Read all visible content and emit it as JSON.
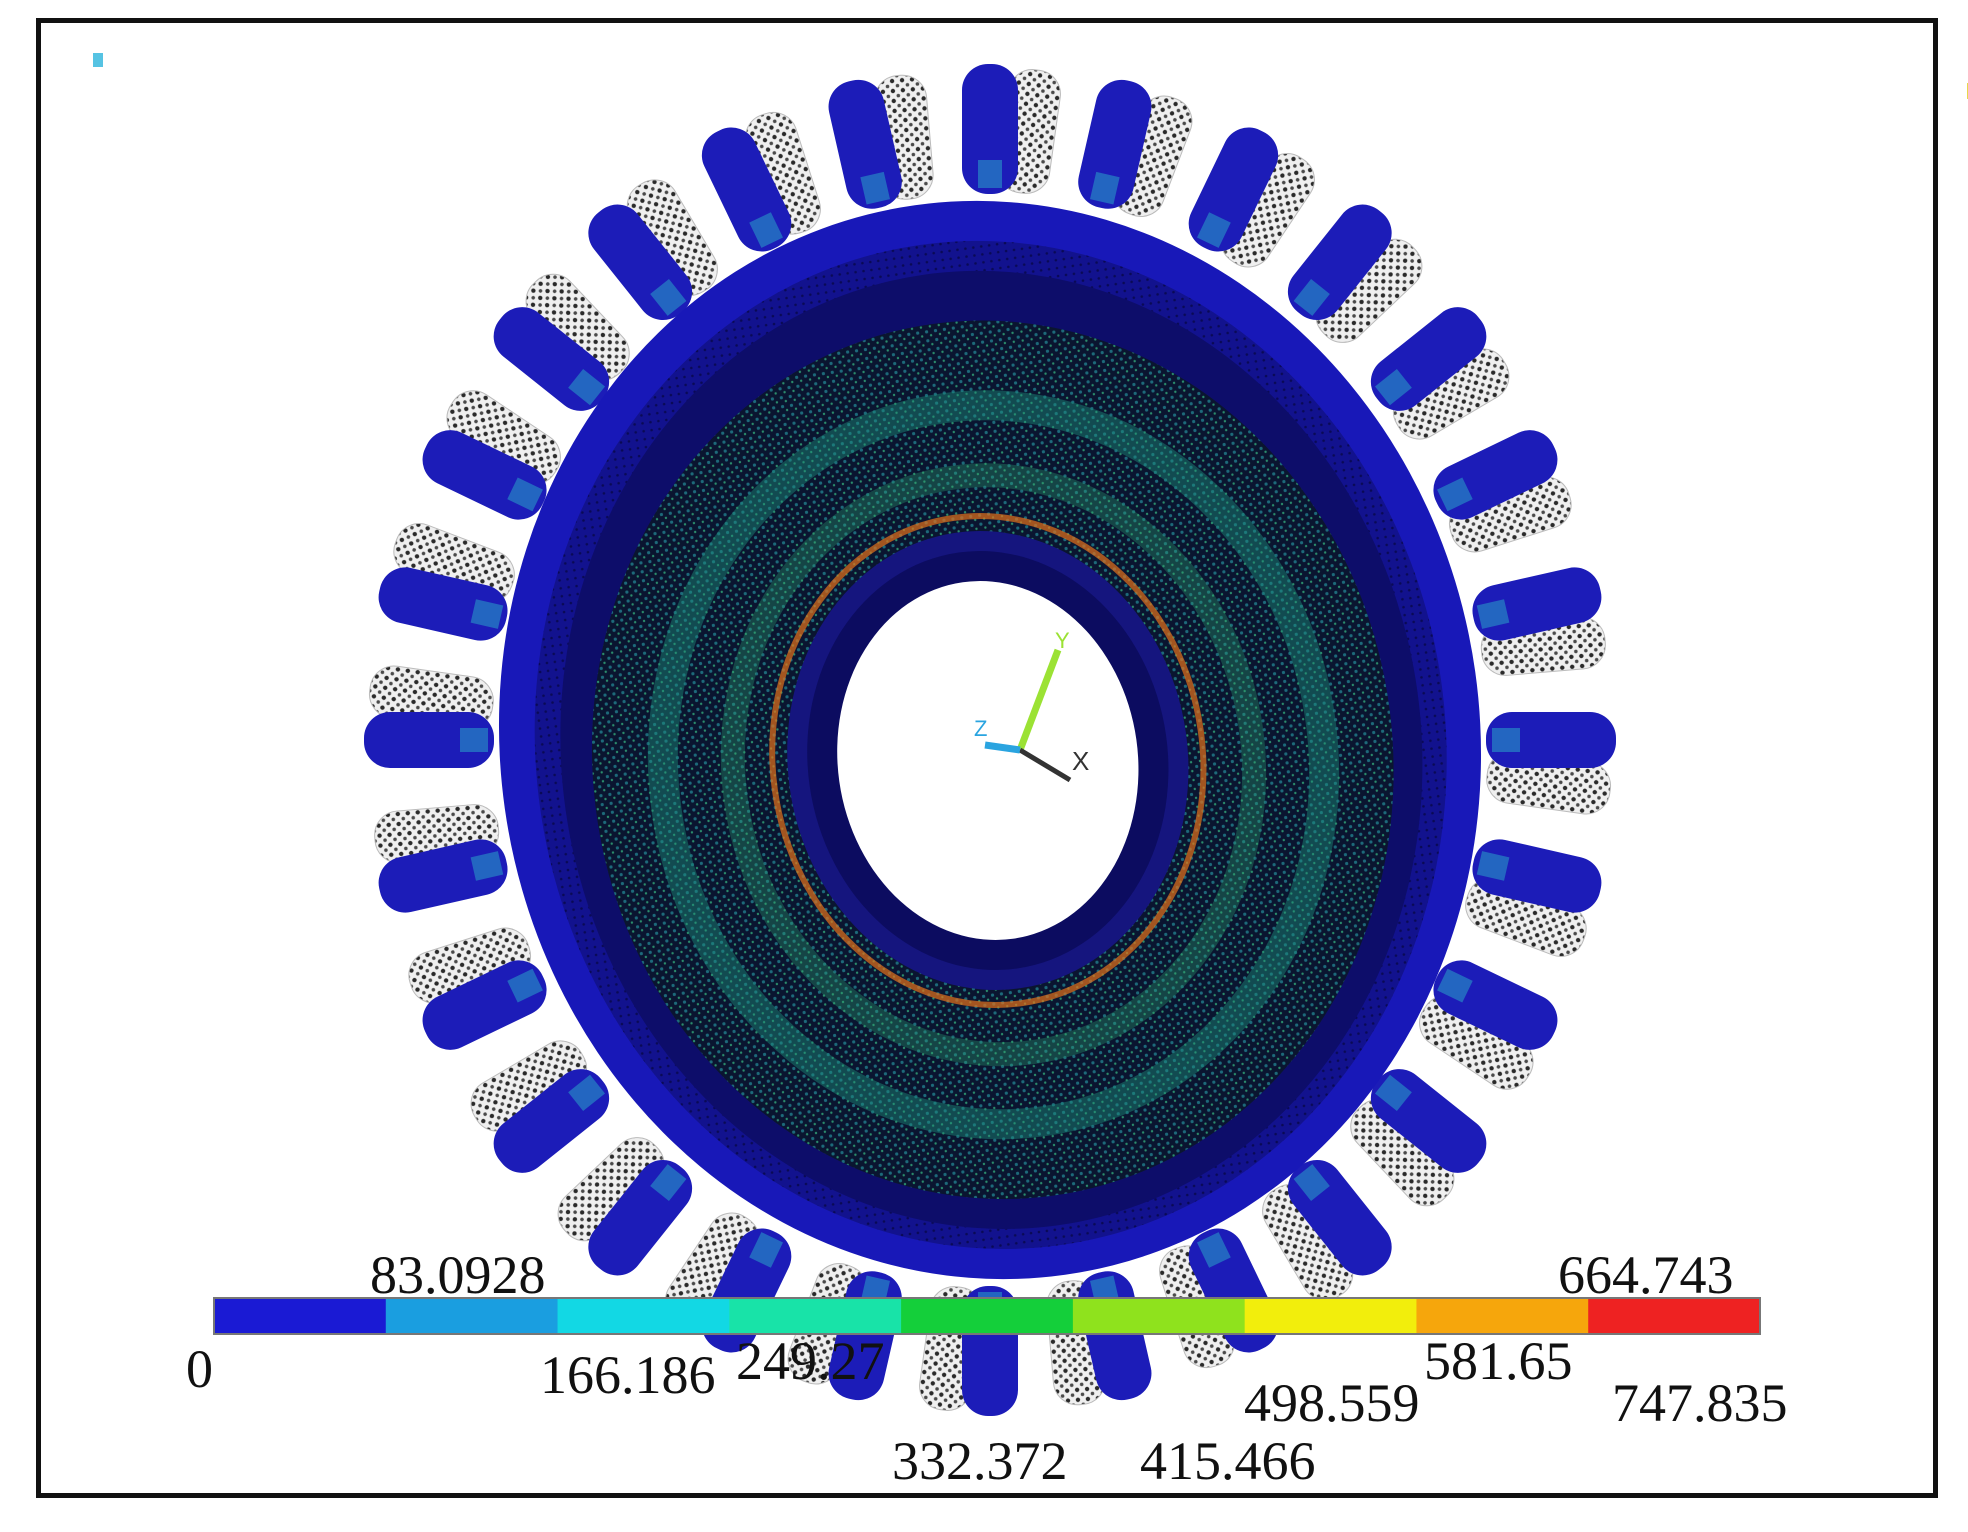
{
  "colorbar": {
    "ticks": [
      "0",
      "83.0928",
      "166.186",
      "249.27",
      "332.372",
      "415.466",
      "498.559",
      "581.65",
      "664.743",
      "747.835"
    ],
    "colors": [
      "#1a1ad4",
      "#1a9ee0",
      "#12d8e4",
      "#18e3a8",
      "#14cf3a",
      "#8fe21d",
      "#f2ee0c",
      "#f6a60c",
      "#ee2222"
    ],
    "min": 0,
    "max": 747.835
  },
  "model": {
    "blade_color": "#1c1cb8",
    "blade_mesh_color": "#d9d9d9",
    "disc_color": "#10108c",
    "hub_color": "#111172",
    "web_colors": [
      "#0f2a4a",
      "#123f4a",
      "#0e5a5a"
    ],
    "peak_color": "#e4701a"
  },
  "triad": {
    "axes": [
      "Y",
      "X",
      "Z"
    ],
    "colors": [
      "#9be234",
      "#333333",
      "#2aa4e0"
    ]
  }
}
